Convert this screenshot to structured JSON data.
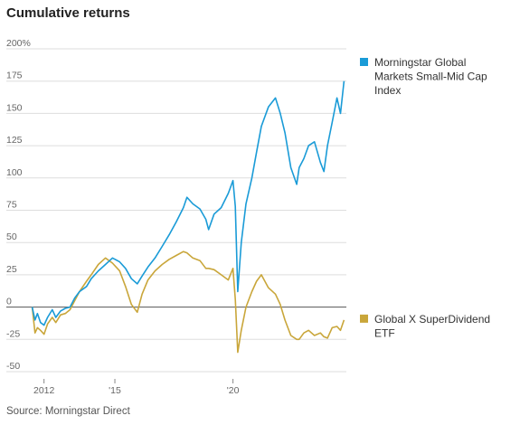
{
  "chart_data": {
    "type": "line",
    "title": "Cumulative returns",
    "source": "Source: Morningstar Direct",
    "xlabel": "",
    "ylabel": "",
    "xlim": [
      2011.4,
      2024.8
    ],
    "ylim": [
      -50,
      200
    ],
    "y_ticks": [
      {
        "value": 200,
        "label": "200%"
      },
      {
        "value": 175,
        "label": "175"
      },
      {
        "value": 150,
        "label": "150"
      },
      {
        "value": 125,
        "label": "125"
      },
      {
        "value": 100,
        "label": "100"
      },
      {
        "value": 75,
        "label": "75"
      },
      {
        "value": 50,
        "label": "50"
      },
      {
        "value": 25,
        "label": "25"
      },
      {
        "value": 0,
        "label": "0"
      },
      {
        "value": -25,
        "label": "-25"
      },
      {
        "value": -50,
        "label": "-50"
      }
    ],
    "x_ticks": [
      {
        "value": 2012,
        "label": "2012"
      },
      {
        "value": 2015,
        "label": "'15"
      },
      {
        "value": 2020,
        "label": "'20"
      }
    ],
    "grid": "horizontal",
    "legend_placement": "right, beside line ends",
    "series": [
      {
        "name": "Morningstar Global Markets Small-Mid Cap Index",
        "legend_lines": [
          "Morningstar Global",
          "Markets Small-Mid Cap",
          "Index"
        ],
        "color": "#1a9bd7",
        "x": [
          2011.5,
          2011.62,
          2011.72,
          2011.85,
          2012.0,
          2012.15,
          2012.35,
          2012.5,
          2012.7,
          2012.9,
          2013.1,
          2013.3,
          2013.5,
          2013.8,
          2014.0,
          2014.3,
          2014.6,
          2014.9,
          2015.2,
          2015.45,
          2015.7,
          2015.95,
          2016.15,
          2016.4,
          2016.7,
          2017.0,
          2017.3,
          2017.6,
          2017.9,
          2018.05,
          2018.3,
          2018.6,
          2018.85,
          2018.97,
          2019.2,
          2019.5,
          2019.8,
          2020.0,
          2020.1,
          2020.2,
          2020.35,
          2020.55,
          2020.8,
          2021.0,
          2021.2,
          2021.5,
          2021.8,
          2022.0,
          2022.2,
          2022.45,
          2022.7,
          2022.8,
          2023.0,
          2023.2,
          2023.45,
          2023.7,
          2023.85,
          2024.0,
          2024.2,
          2024.4,
          2024.55,
          2024.7
        ],
        "y": [
          0,
          -10,
          -5,
          -12,
          -14,
          -8,
          -2,
          -8,
          -3,
          -1,
          0,
          7,
          12,
          16,
          22,
          28,
          33,
          38,
          35,
          30,
          22,
          18,
          24,
          31,
          38,
          47,
          56,
          66,
          77,
          85,
          80,
          76,
          68,
          60,
          72,
          77,
          88,
          98,
          78,
          12,
          50,
          80,
          100,
          120,
          140,
          155,
          162,
          150,
          135,
          108,
          95,
          108,
          115,
          125,
          128,
          112,
          105,
          125,
          143,
          162,
          150,
          175
        ]
      },
      {
        "name": "Global X SuperDividend ETF",
        "legend_lines": [
          "Global X SuperDividend",
          "ETF"
        ],
        "color": "#c9a63a",
        "x": [
          2011.5,
          2011.62,
          2011.72,
          2011.85,
          2012.0,
          2012.15,
          2012.35,
          2012.5,
          2012.7,
          2012.9,
          2013.1,
          2013.3,
          2013.5,
          2013.8,
          2014.0,
          2014.3,
          2014.6,
          2014.9,
          2015.2,
          2015.45,
          2015.7,
          2015.95,
          2016.15,
          2016.4,
          2016.7,
          2017.0,
          2017.3,
          2017.6,
          2017.9,
          2018.05,
          2018.3,
          2018.6,
          2018.85,
          2018.97,
          2019.2,
          2019.5,
          2019.8,
          2020.0,
          2020.1,
          2020.2,
          2020.35,
          2020.55,
          2020.8,
          2021.0,
          2021.2,
          2021.5,
          2021.8,
          2022.0,
          2022.2,
          2022.45,
          2022.7,
          2022.8,
          2023.0,
          2023.2,
          2023.45,
          2023.7,
          2023.85,
          2024.0,
          2024.2,
          2024.4,
          2024.55,
          2024.7
        ],
        "y": [
          0,
          -20,
          -16,
          -18,
          -21,
          -13,
          -8,
          -12,
          -6,
          -5,
          -2,
          5,
          12,
          20,
          25,
          33,
          38,
          34,
          28,
          16,
          2,
          -4,
          10,
          21,
          28,
          33,
          37,
          40,
          43,
          42,
          38,
          36,
          30,
          30,
          29,
          25,
          21,
          30,
          6,
          -35,
          -18,
          0,
          12,
          20,
          25,
          15,
          10,
          2,
          -10,
          -22,
          -25,
          -25,
          -20,
          -18,
          -22,
          -20,
          -23,
          -24,
          -16,
          -15,
          -18,
          -10
        ]
      }
    ]
  }
}
